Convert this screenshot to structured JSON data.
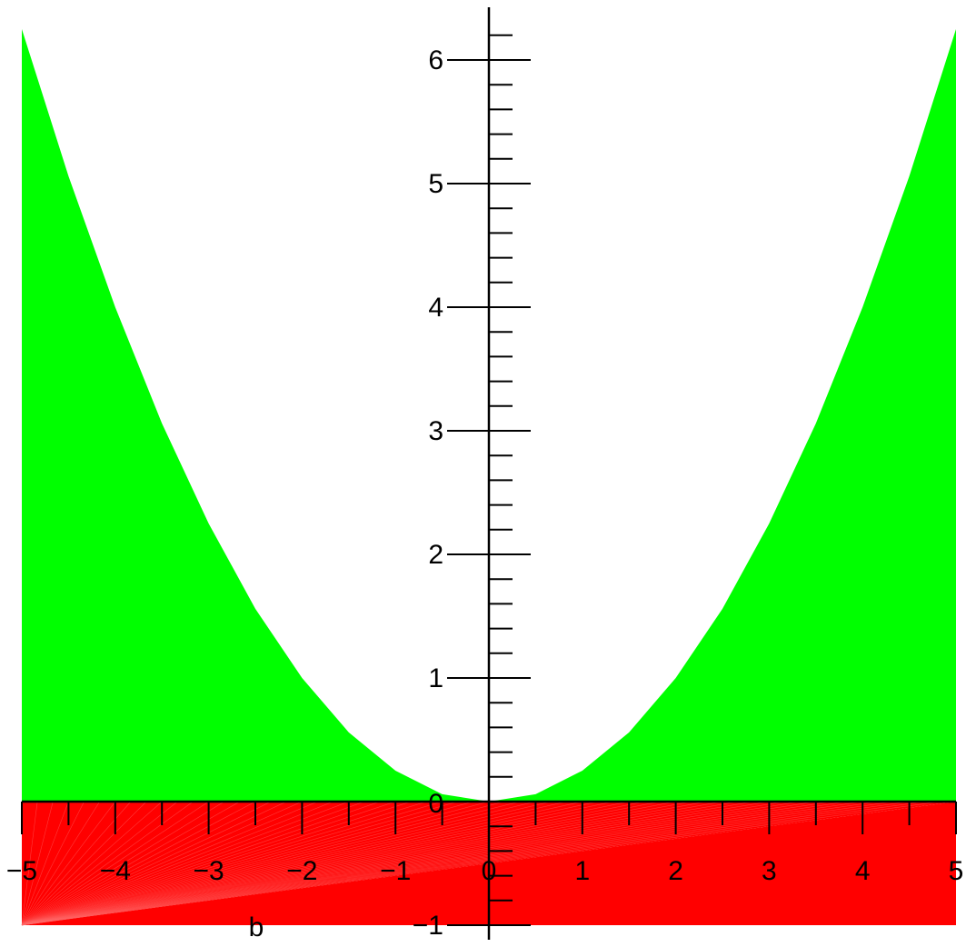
{
  "chart_data": {
    "type": "area",
    "xlabel": "b",
    "ylabel": "",
    "xlim": [
      -5,
      5
    ],
    "ylim": [
      -1,
      6.25
    ],
    "grid": false,
    "x_ticks": [
      -5,
      -4,
      -3,
      -2,
      -1,
      0,
      1,
      2,
      3,
      4,
      5
    ],
    "x_tick_labels": [
      "−5",
      "−4",
      "−3",
      "−2",
      "−1",
      "0",
      "1",
      "2",
      "3",
      "4",
      "5"
    ],
    "y_ticks": [
      -1,
      0,
      1,
      2,
      3,
      4,
      5,
      6
    ],
    "y_tick_labels": [
      "−1",
      "0",
      "1",
      "2",
      "3",
      "4",
      "5",
      "6"
    ],
    "x_minor_step": 0.5,
    "y_minor_step": 0.2,
    "series": [
      {
        "kind": "fill-between-curve-and-zero",
        "color": "#00ff00",
        "x": [
          -5,
          -4.5,
          -4,
          -3.5,
          -3,
          -2.5,
          -2,
          -1.5,
          -1,
          -0.5,
          0,
          0.5,
          1,
          1.5,
          2,
          2.5,
          3,
          3.5,
          4,
          4.5,
          5
        ],
        "y": [
          6.25,
          5.06,
          4.0,
          3.06,
          2.25,
          1.56,
          1.0,
          0.56,
          0.25,
          0.06,
          0,
          0.06,
          0.25,
          0.56,
          1.0,
          1.56,
          2.25,
          3.06,
          4.0,
          5.06,
          6.25
        ]
      },
      {
        "kind": "fill-between-line-and-minus-one",
        "color": "#ff0000",
        "x": [
          -5,
          5
        ],
        "y": [
          -1,
          0
        ]
      },
      {
        "kind": "fill-between-line-and-zero",
        "color": "#ff0000",
        "x": [
          -5,
          5
        ],
        "y": [
          -1,
          0
        ]
      }
    ]
  }
}
